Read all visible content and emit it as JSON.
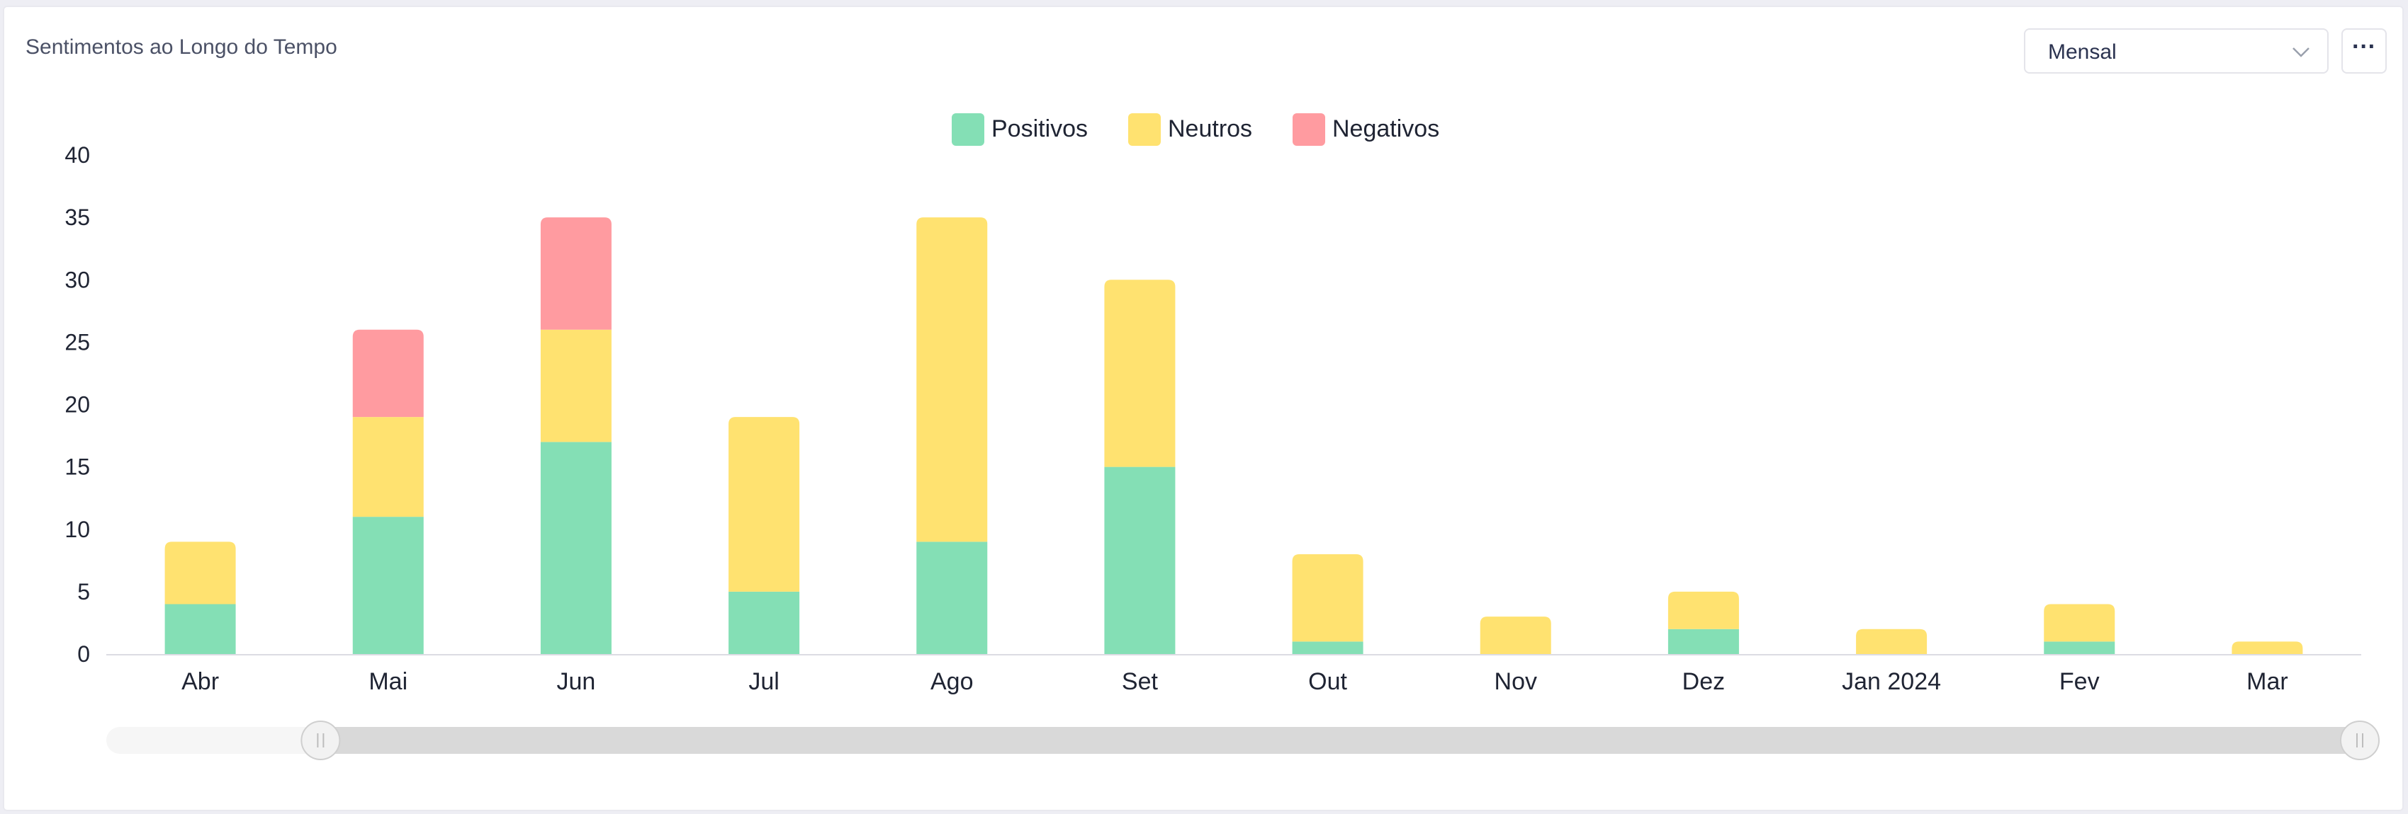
{
  "card": {
    "title": "Sentimentos ao Longo do Tempo"
  },
  "controls": {
    "period_select": "Mensal",
    "more_label": "···",
    "select_icon": "chevron-down-icon",
    "more_icon": "ellipsis-icon"
  },
  "chart_data": {
    "type": "bar",
    "stacked": true,
    "categories": [
      "Abr",
      "Mai",
      "Jun",
      "Jul",
      "Ago",
      "Set",
      "Out",
      "Nov",
      "Dez",
      "Jan 2024",
      "Fev",
      "Mar"
    ],
    "series": [
      {
        "name": "Positivos",
        "color": "#84dfb5",
        "values": [
          4,
          11,
          17,
          5,
          9,
          15,
          1,
          0,
          2,
          0,
          1,
          0
        ]
      },
      {
        "name": "Neutros",
        "color": "#ffe270",
        "values": [
          5,
          8,
          9,
          14,
          26,
          15,
          7,
          3,
          3,
          2,
          3,
          1
        ]
      },
      {
        "name": "Negativos",
        "color": "#ff9ba0",
        "values": [
          0,
          7,
          9,
          0,
          0,
          0,
          0,
          0,
          0,
          0,
          0,
          0
        ]
      }
    ],
    "yticks": [
      "0",
      "5",
      "10",
      "15",
      "20",
      "25",
      "30",
      "35",
      "40"
    ],
    "ylim": [
      0,
      40
    ],
    "legend_position": "top-center",
    "grid": false,
    "zoom_range": [
      0.09,
      1.0
    ]
  }
}
